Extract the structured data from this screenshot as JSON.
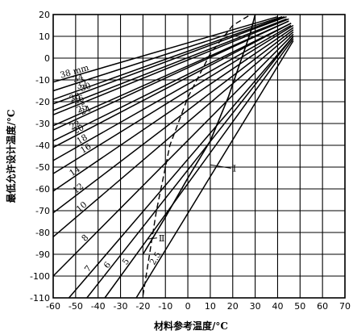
{
  "chart_data": {
    "type": "line",
    "xlabel": "材料参考温度/°C",
    "ylabel": "最低允许设计温度/°C",
    "xlim": [
      -60,
      70
    ],
    "ylim": [
      -110,
      20
    ],
    "x_ticks": [
      -60,
      -50,
      -40,
      -30,
      -20,
      -10,
      0,
      10,
      20,
      30,
      40,
      50,
      60,
      70
    ],
    "y_ticks": [
      20,
      10,
      0,
      -10,
      -20,
      -30,
      -40,
      -50,
      -60,
      -70,
      -80,
      -90,
      -100,
      -110
    ],
    "grid": true,
    "series": [
      {
        "name": "38 mm",
        "points": [
          [
            -60,
            -11
          ],
          [
            40,
            19
          ]
        ]
      },
      {
        "name": "34",
        "points": [
          [
            -60,
            -15
          ],
          [
            42,
            19
          ]
        ]
      },
      {
        "name": "32",
        "points": [
          [
            -60,
            -19
          ],
          [
            43,
            19
          ]
        ]
      },
      {
        "name": "30",
        "points": [
          [
            -60,
            -21
          ],
          [
            44,
            19
          ]
        ]
      },
      {
        "name": "28",
        "points": [
          [
            -60,
            -24
          ],
          [
            44,
            18
          ]
        ]
      },
      {
        "name": "26",
        "points": [
          [
            -60,
            -26
          ],
          [
            45,
            18
          ]
        ]
      },
      {
        "name": "25",
        "points": [
          [
            -60,
            -31
          ],
          [
            45,
            17
          ]
        ]
      },
      {
        "name": "24",
        "points": [
          [
            -60,
            -33
          ],
          [
            45,
            17
          ]
        ]
      },
      {
        "name": "22",
        "points": [
          [
            -60,
            -38
          ],
          [
            46,
            16
          ]
        ]
      },
      {
        "name": "20",
        "points": [
          [
            -60,
            -41
          ],
          [
            46,
            16
          ]
        ]
      },
      {
        "name": "18",
        "points": [
          [
            -60,
            -47
          ],
          [
            46,
            15
          ]
        ]
      },
      {
        "name": "16",
        "points": [
          [
            -60,
            -53
          ],
          [
            47,
            15
          ]
        ]
      },
      {
        "name": "14",
        "points": [
          [
            -60,
            -61
          ],
          [
            47,
            14
          ]
        ]
      },
      {
        "name": "12",
        "points": [
          [
            -60,
            -71
          ],
          [
            47,
            13
          ]
        ]
      },
      {
        "name": "10",
        "points": [
          [
            -60,
            -82
          ],
          [
            47,
            12
          ]
        ]
      },
      {
        "name": "8",
        "points": [
          [
            -60,
            -100
          ],
          [
            47,
            11
          ]
        ]
      },
      {
        "name": "7",
        "points": [
          [
            -53,
            -110
          ],
          [
            47,
            10
          ]
        ]
      },
      {
        "name": "6",
        "points": [
          [
            -45,
            -110
          ],
          [
            47,
            10
          ]
        ]
      },
      {
        "name": "5",
        "points": [
          [
            -37,
            -110
          ],
          [
            47,
            9
          ]
        ]
      },
      {
        "name": "2.5",
        "points": [
          [
            -23,
            -110
          ],
          [
            47,
            8
          ]
        ]
      }
    ],
    "curves": [
      {
        "name": "Ⅰ",
        "style": "solid",
        "points": [
          [
            -20,
            -90
          ],
          [
            -10,
            -73
          ],
          [
            0,
            -55
          ],
          [
            10,
            -38
          ],
          [
            18,
            -18
          ],
          [
            24,
            0
          ],
          [
            28,
            12
          ],
          [
            30,
            20
          ]
        ]
      },
      {
        "name": "Ⅱ",
        "style": "dashed",
        "points": [
          [
            -20,
            -109
          ],
          [
            -14,
            -70
          ],
          [
            -8,
            -40
          ],
          [
            0,
            -18
          ],
          [
            10,
            2
          ],
          [
            20,
            15
          ],
          [
            28,
            20
          ]
        ]
      }
    ],
    "annotations": [
      {
        "text": "Ⅰ",
        "at": [
          20,
          -52
        ],
        "target": [
          10,
          -49
        ]
      },
      {
        "text": "Ⅱ",
        "at": [
          -13,
          -84
        ],
        "target": [
          -18,
          -83
        ]
      }
    ]
  }
}
